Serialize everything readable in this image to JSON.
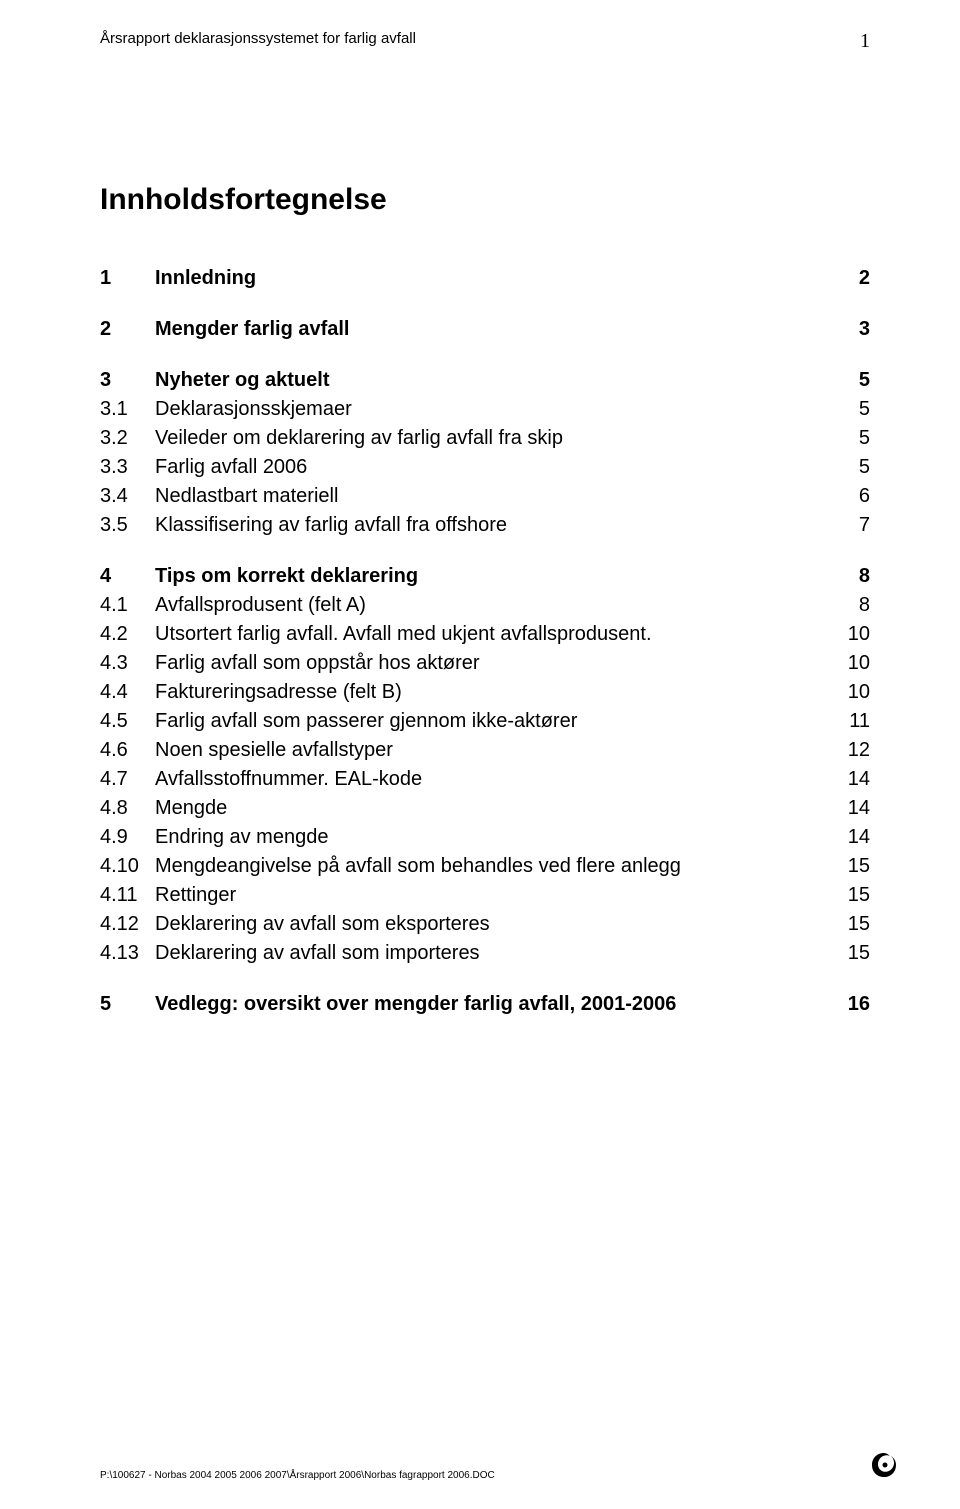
{
  "header": {
    "left": "Årsrapport deklarasjonssystemet for farlig avfall",
    "page_number": "1"
  },
  "title": "Innholdsfortegnelse",
  "toc": [
    {
      "type": "l1",
      "num": "1",
      "label": "Innledning",
      "pg": "2"
    },
    {
      "type": "gap"
    },
    {
      "type": "l1",
      "num": "2",
      "label": "Mengder farlig avfall",
      "pg": "3"
    },
    {
      "type": "gap"
    },
    {
      "type": "l1",
      "num": "3",
      "label": "Nyheter og aktuelt",
      "pg": "5"
    },
    {
      "type": "l2",
      "num": "3.1",
      "label": "Deklarasjonsskjemaer",
      "pg": "5"
    },
    {
      "type": "l2",
      "num": "3.2",
      "label": "Veileder om deklarering av farlig avfall fra skip",
      "pg": "5"
    },
    {
      "type": "l2",
      "num": "3.3",
      "label": "Farlig avfall 2006",
      "pg": "5"
    },
    {
      "type": "l2",
      "num": "3.4",
      "label": "Nedlastbart materiell",
      "pg": "6"
    },
    {
      "type": "l2",
      "num": "3.5",
      "label": "Klassifisering av farlig avfall fra offshore",
      "pg": "7"
    },
    {
      "type": "gap"
    },
    {
      "type": "l1",
      "num": "4",
      "label": "Tips om korrekt deklarering",
      "pg": "8"
    },
    {
      "type": "l2",
      "num": "4.1",
      "label": "Avfallsprodusent (felt A)",
      "pg": "8"
    },
    {
      "type": "l2",
      "num": "4.2",
      "label": "Utsortert farlig avfall. Avfall med ukjent avfallsprodusent.",
      "pg": "10"
    },
    {
      "type": "l2",
      "num": "4.3",
      "label": "Farlig avfall som oppstår hos aktører",
      "pg": "10"
    },
    {
      "type": "l2",
      "num": "4.4",
      "label": "Faktureringsadresse (felt B)",
      "pg": "10"
    },
    {
      "type": "l2",
      "num": "4.5",
      "label": "Farlig avfall som passerer gjennom ikke-aktører",
      "pg": "11"
    },
    {
      "type": "l2",
      "num": "4.6",
      "label": "Noen spesielle avfallstyper",
      "pg": "12"
    },
    {
      "type": "l2",
      "num": "4.7",
      "label": "Avfallsstoffnummer. EAL-kode",
      "pg": "14"
    },
    {
      "type": "l2",
      "num": "4.8",
      "label": "Mengde",
      "pg": "14"
    },
    {
      "type": "l2",
      "num": "4.9",
      "label": "Endring av mengde",
      "pg": "14"
    },
    {
      "type": "l2",
      "num": "4.10",
      "label": "Mengdeangivelse på avfall som behandles ved flere anlegg",
      "pg": "15"
    },
    {
      "type": "l2",
      "num": "4.11",
      "label": "Rettinger",
      "pg": "15"
    },
    {
      "type": "l2",
      "num": "4.12",
      "label": "Deklarering av avfall som eksporteres",
      "pg": "15"
    },
    {
      "type": "l2",
      "num": "4.13",
      "label": "Deklarering av avfall som importeres",
      "pg": "15"
    },
    {
      "type": "gap"
    },
    {
      "type": "l1",
      "num": "5",
      "label": "Vedlegg: oversikt over mengder farlig avfall, 2001-2006",
      "pg": "16"
    }
  ],
  "footer": {
    "path": "P:\\100627 - Norbas 2004 2005 2006 2007\\Årsrapport 2006\\Norbas fagrapport 2006.DOC"
  }
}
